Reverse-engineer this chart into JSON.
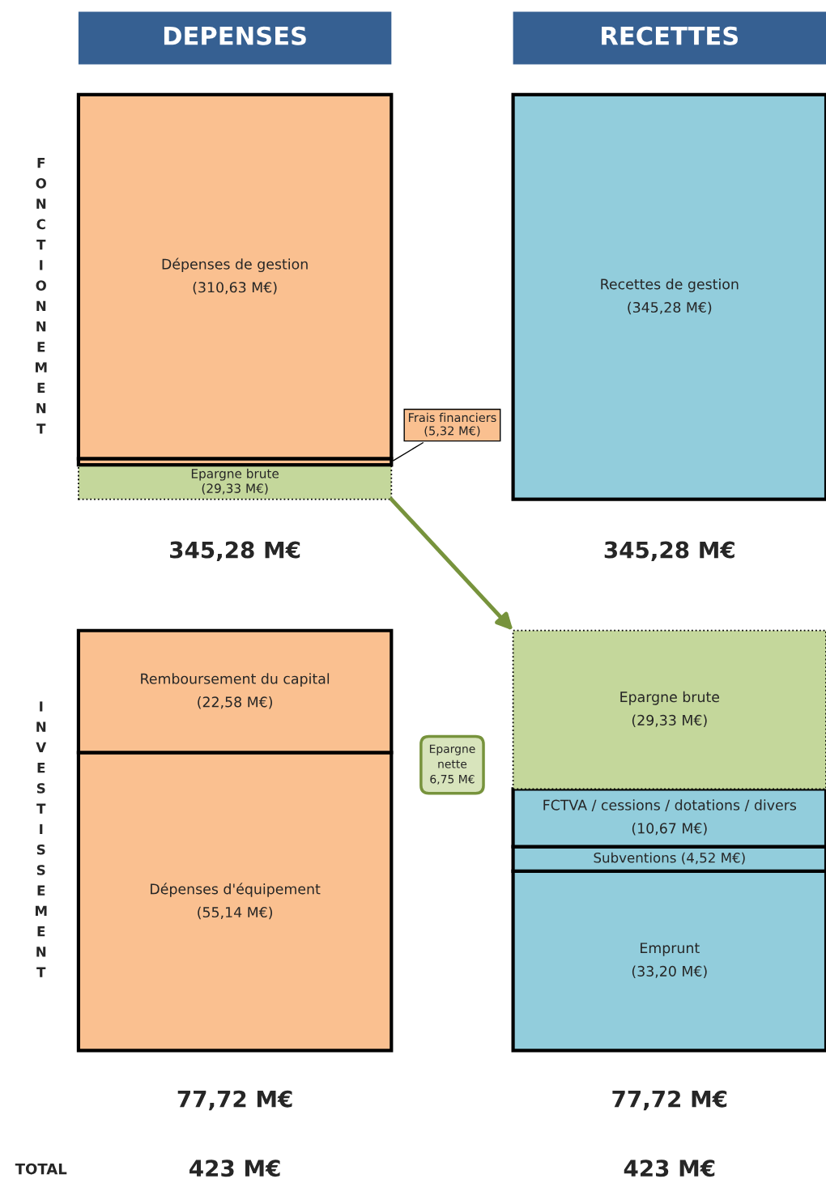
{
  "chart_data": [
    {
      "type": "bar",
      "stacked": true,
      "categories": [
        "DEPENSES",
        "RECETTES"
      ],
      "ylabel": "FONCTIONNEMENT",
      "tick_labels": "x",
      "series": [
        {
          "name": "Epargne brute",
          "color": "#c4d79b",
          "line_style": "dotted",
          "values": [
            29.33,
            null
          ],
          "value_labels": [
            "(29,33 M€)",
            null
          ]
        },
        {
          "name": "Frais financiers",
          "color": "#fac090",
          "values": [
            5.32,
            null
          ],
          "value_labels": [
            "(5,32 M€)",
            null
          ]
        },
        {
          "name": "Dépenses de gestion",
          "color": "#fac090",
          "values": [
            310.63,
            null
          ],
          "value_labels": [
            "(310,63 M€)",
            null
          ]
        },
        {
          "name": "Recettes de gestion",
          "color": "#92cddc",
          "values": [
            null,
            345.28
          ],
          "value_labels": [
            null,
            "(345,28 M€)"
          ]
        }
      ],
      "totals": [
        "345,28 M€",
        "345,28 M€"
      ]
    },
    {
      "type": "bar",
      "stacked": true,
      "categories": [
        null,
        null
      ],
      "ylabel": "INVESTISSEMENT",
      "tick_labels": false,
      "series": [
        {
          "name": "Dépenses d'équipement",
          "color": "#fac090",
          "values": [
            55.14,
            null
          ],
          "value_labels": [
            "(55,14 M€)",
            null
          ]
        },
        {
          "name": "Remboursement du capital",
          "color": "#fac090",
          "values": [
            22.58,
            null
          ],
          "value_labels": [
            "(22,58 M€)",
            null
          ]
        },
        {
          "name": "Emprunt",
          "color": "#92cddc",
          "values": [
            null,
            33.2
          ],
          "value_labels": [
            null,
            "(33,20 M€)"
          ]
        },
        {
          "name": "Subventions",
          "color": "#92cddc",
          "values": [
            null,
            4.52
          ],
          "value_labels": [
            null,
            "(4,52 M€)"
          ]
        },
        {
          "name": "FCTVA / cessions / dotations / divers",
          "color": "#92cddc",
          "values": [
            null,
            10.67
          ],
          "value_labels": [
            null,
            "(10,67 M€)"
          ]
        },
        {
          "name": "Epargne brute",
          "color": "#c4d79b",
          "line_style": "dotted",
          "values": [
            null,
            29.33
          ],
          "value_labels": [
            null,
            "(29,33 M€)"
          ]
        }
      ],
      "totals": [
        "77,72 M€",
        "77,72 M€"
      ],
      "annotations": [
        "Epargne\nnette\n6,75 M€",
        "TOTAL",
        "423 M€",
        "423 M€"
      ]
    }
  ]
}
